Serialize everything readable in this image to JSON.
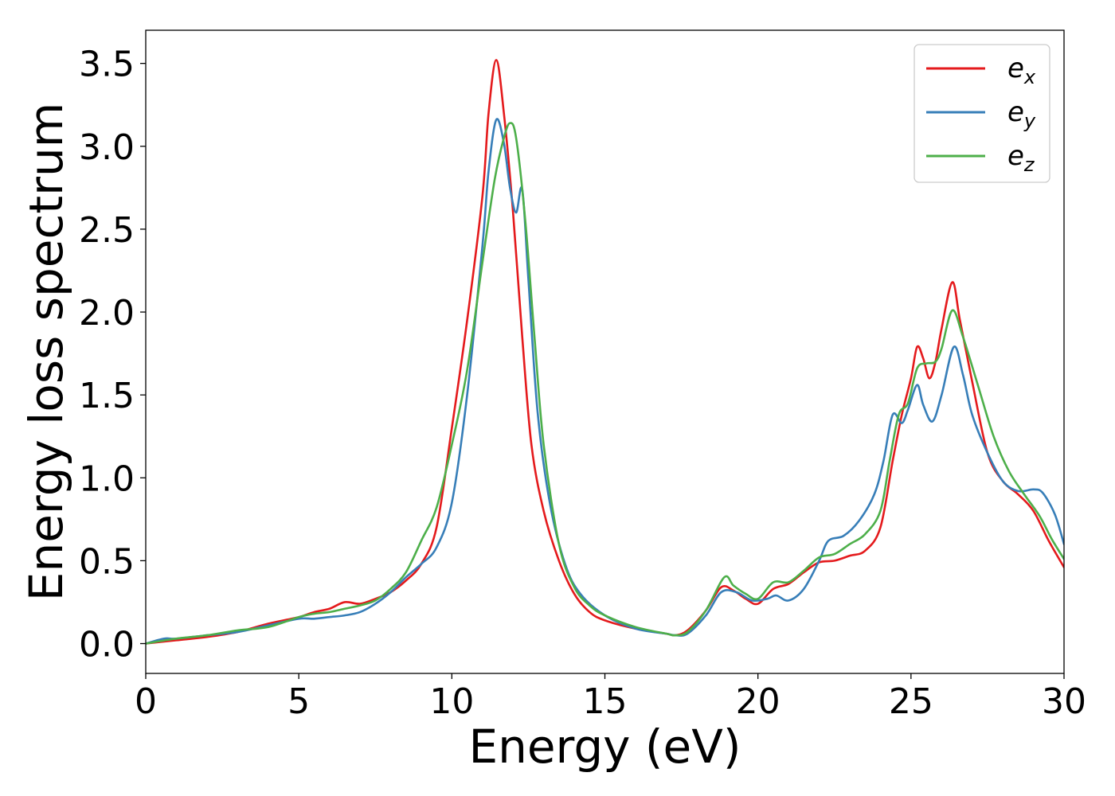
{
  "chart_data": {
    "type": "line",
    "xlabel": "Energy (eV)",
    "ylabel": "Energy loss spectrum",
    "xlim": [
      0,
      30
    ],
    "ylim": [
      -0.18,
      3.7
    ],
    "xticks": [
      0,
      5,
      10,
      15,
      20,
      25,
      30
    ],
    "yticks": [
      0.0,
      0.5,
      1.0,
      1.5,
      2.0,
      2.5,
      3.0,
      3.5
    ],
    "ytick_labels": [
      "0.0",
      "0.5",
      "1.0",
      "1.5",
      "2.0",
      "2.5",
      "3.0",
      "3.5"
    ],
    "grid": false,
    "legend_position": "top-right",
    "series": [
      {
        "name": "e",
        "subscript": "x",
        "color": "#e41a1c",
        "points": [
          [
            0,
            0
          ],
          [
            1,
            0.02
          ],
          [
            2,
            0.04
          ],
          [
            3,
            0.07
          ],
          [
            4,
            0.12
          ],
          [
            5,
            0.16
          ],
          [
            5.5,
            0.19
          ],
          [
            6,
            0.21
          ],
          [
            6.5,
            0.25
          ],
          [
            7,
            0.24
          ],
          [
            7.5,
            0.27
          ],
          [
            8,
            0.31
          ],
          [
            8.5,
            0.38
          ],
          [
            9,
            0.48
          ],
          [
            9.5,
            0.7
          ],
          [
            10,
            1.3
          ],
          [
            10.5,
            1.95
          ],
          [
            11,
            2.7
          ],
          [
            11.2,
            3.2
          ],
          [
            11.45,
            3.52
          ],
          [
            11.7,
            3.2
          ],
          [
            12,
            2.6
          ],
          [
            12.3,
            1.85
          ],
          [
            12.6,
            1.2
          ],
          [
            13,
            0.8
          ],
          [
            13.5,
            0.5
          ],
          [
            14,
            0.3
          ],
          [
            14.5,
            0.19
          ],
          [
            15,
            0.14
          ],
          [
            16,
            0.09
          ],
          [
            17,
            0.06
          ],
          [
            17.3,
            0.05
          ],
          [
            17.7,
            0.08
          ],
          [
            18.3,
            0.2
          ],
          [
            18.8,
            0.34
          ],
          [
            19.2,
            0.32
          ],
          [
            19.6,
            0.27
          ],
          [
            20,
            0.24
          ],
          [
            20.5,
            0.33
          ],
          [
            21,
            0.36
          ],
          [
            21.5,
            0.43
          ],
          [
            22,
            0.49
          ],
          [
            22.5,
            0.5
          ],
          [
            23,
            0.53
          ],
          [
            23.5,
            0.56
          ],
          [
            24,
            0.7
          ],
          [
            24.4,
            1.1
          ],
          [
            24.7,
            1.38
          ],
          [
            25,
            1.6
          ],
          [
            25.2,
            1.79
          ],
          [
            25.4,
            1.72
          ],
          [
            25.6,
            1.6
          ],
          [
            25.8,
            1.7
          ],
          [
            26,
            1.9
          ],
          [
            26.35,
            2.18
          ],
          [
            26.6,
            1.95
          ],
          [
            27,
            1.58
          ],
          [
            27.5,
            1.15
          ],
          [
            28,
            0.98
          ],
          [
            28.5,
            0.9
          ],
          [
            29,
            0.8
          ],
          [
            29.5,
            0.62
          ],
          [
            30,
            0.46
          ]
        ]
      },
      {
        "name": "e",
        "subscript": "y",
        "color": "#377eb8",
        "points": [
          [
            0,
            0
          ],
          [
            0.6,
            0.03
          ],
          [
            1,
            0.03
          ],
          [
            2,
            0.05
          ],
          [
            3,
            0.07
          ],
          [
            4,
            0.11
          ],
          [
            5,
            0.15
          ],
          [
            5.5,
            0.15
          ],
          [
            6,
            0.16
          ],
          [
            6.5,
            0.17
          ],
          [
            7,
            0.19
          ],
          [
            7.5,
            0.24
          ],
          [
            8,
            0.31
          ],
          [
            8.5,
            0.4
          ],
          [
            9,
            0.48
          ],
          [
            9.5,
            0.58
          ],
          [
            10,
            0.85
          ],
          [
            10.5,
            1.5
          ],
          [
            11,
            2.4
          ],
          [
            11.2,
            2.85
          ],
          [
            11.45,
            3.16
          ],
          [
            11.7,
            3.02
          ],
          [
            11.9,
            2.75
          ],
          [
            12.1,
            2.6
          ],
          [
            12.3,
            2.74
          ],
          [
            12.5,
            2.2
          ],
          [
            12.8,
            1.4
          ],
          [
            13.2,
            0.85
          ],
          [
            13.7,
            0.48
          ],
          [
            14.2,
            0.3
          ],
          [
            15,
            0.17
          ],
          [
            16,
            0.09
          ],
          [
            17,
            0.06
          ],
          [
            17.3,
            0.05
          ],
          [
            17.7,
            0.06
          ],
          [
            18.3,
            0.17
          ],
          [
            18.8,
            0.31
          ],
          [
            19.3,
            0.31
          ],
          [
            19.8,
            0.26
          ],
          [
            20.3,
            0.27
          ],
          [
            20.6,
            0.29
          ],
          [
            21,
            0.26
          ],
          [
            21.5,
            0.33
          ],
          [
            22,
            0.5
          ],
          [
            22.3,
            0.62
          ],
          [
            22.8,
            0.65
          ],
          [
            23.3,
            0.74
          ],
          [
            23.8,
            0.9
          ],
          [
            24.1,
            1.1
          ],
          [
            24.4,
            1.38
          ],
          [
            24.7,
            1.33
          ],
          [
            24.9,
            1.41
          ],
          [
            25.2,
            1.56
          ],
          [
            25.4,
            1.44
          ],
          [
            25.7,
            1.34
          ],
          [
            26,
            1.5
          ],
          [
            26.4,
            1.79
          ],
          [
            26.7,
            1.62
          ],
          [
            27,
            1.38
          ],
          [
            27.5,
            1.15
          ],
          [
            28,
            0.98
          ],
          [
            28.5,
            0.92
          ],
          [
            29,
            0.93
          ],
          [
            29.3,
            0.91
          ],
          [
            29.7,
            0.78
          ],
          [
            30,
            0.6
          ]
        ]
      },
      {
        "name": "e",
        "subscript": "z",
        "color": "#4daf4a",
        "points": [
          [
            0,
            0
          ],
          [
            1,
            0.03
          ],
          [
            2,
            0.05
          ],
          [
            3,
            0.08
          ],
          [
            4,
            0.1
          ],
          [
            5,
            0.16
          ],
          [
            5.5,
            0.18
          ],
          [
            6,
            0.19
          ],
          [
            6.5,
            0.21
          ],
          [
            7,
            0.23
          ],
          [
            7.5,
            0.26
          ],
          [
            8,
            0.33
          ],
          [
            8.5,
            0.43
          ],
          [
            9,
            0.62
          ],
          [
            9.5,
            0.82
          ],
          [
            10,
            1.2
          ],
          [
            10.5,
            1.65
          ],
          [
            11,
            2.3
          ],
          [
            11.4,
            2.8
          ],
          [
            11.7,
            3.05
          ],
          [
            11.9,
            3.14
          ],
          [
            12.1,
            3.05
          ],
          [
            12.4,
            2.55
          ],
          [
            12.7,
            1.85
          ],
          [
            13,
            1.2
          ],
          [
            13.5,
            0.6
          ],
          [
            14,
            0.34
          ],
          [
            14.5,
            0.23
          ],
          [
            15,
            0.17
          ],
          [
            16,
            0.1
          ],
          [
            17,
            0.06
          ],
          [
            17.3,
            0.05
          ],
          [
            17.7,
            0.07
          ],
          [
            18.3,
            0.2
          ],
          [
            18.9,
            0.4
          ],
          [
            19.2,
            0.35
          ],
          [
            19.6,
            0.3
          ],
          [
            20,
            0.27
          ],
          [
            20.5,
            0.37
          ],
          [
            21,
            0.37
          ],
          [
            21.5,
            0.44
          ],
          [
            22,
            0.52
          ],
          [
            22.5,
            0.54
          ],
          [
            23,
            0.6
          ],
          [
            23.5,
            0.66
          ],
          [
            24,
            0.8
          ],
          [
            24.3,
            1.1
          ],
          [
            24.6,
            1.38
          ],
          [
            24.9,
            1.45
          ],
          [
            25.2,
            1.66
          ],
          [
            25.5,
            1.69
          ],
          [
            25.8,
            1.7
          ],
          [
            26,
            1.78
          ],
          [
            26.35,
            2.01
          ],
          [
            26.7,
            1.85
          ],
          [
            27.2,
            1.55
          ],
          [
            27.7,
            1.25
          ],
          [
            28.2,
            1.04
          ],
          [
            28.7,
            0.9
          ],
          [
            29.2,
            0.77
          ],
          [
            29.6,
            0.63
          ],
          [
            30,
            0.51
          ]
        ]
      }
    ]
  }
}
